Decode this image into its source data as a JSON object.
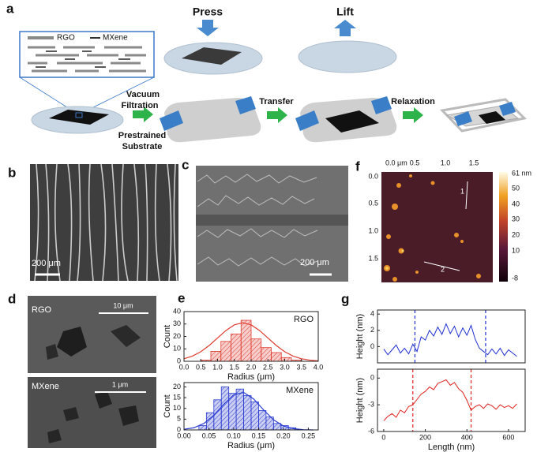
{
  "figure": {
    "a": {
      "label": "a",
      "legend_rgo": "RGO",
      "legend_mxene": "MXene",
      "press": "Press",
      "lift": "Lift",
      "vacuum_filtration": [
        "Vacuum",
        "Filtration"
      ],
      "prestrained_substrate": [
        "Prestrained",
        "Substrate"
      ],
      "transfer": "Transfer",
      "relaxation": "Relaxation"
    },
    "b": {
      "label": "b",
      "scale_bar": "200 μm"
    },
    "c": {
      "label": "c",
      "scale_bar": "200 μm"
    },
    "d": {
      "label": "d",
      "images": [
        {
          "name": "RGO",
          "scale_bar": "10 μm"
        },
        {
          "name": "MXene",
          "scale_bar": "1 μm"
        }
      ]
    },
    "e": {
      "label": "e"
    },
    "f": {
      "label": "f",
      "x_ticks": [
        "0.0 μm",
        "0.5",
        "1.0",
        "1.5"
      ],
      "y_ticks": [
        "0.0",
        "0.5",
        "1.0",
        "1.5"
      ],
      "colorbar_ticks": [
        "61 nm",
        "50",
        "40",
        "30",
        "20",
        "10",
        "-8"
      ],
      "line_labels": [
        "1",
        "2"
      ]
    },
    "g": {
      "label": "g"
    }
  },
  "chart_data": [
    {
      "type": "histogram",
      "annotation": "RGO",
      "y_label": "Count",
      "x_label": "Radius (μm)",
      "color": "#e03c31",
      "bins": [
        0.5,
        0.8,
        1.1,
        1.4,
        1.7,
        2.0,
        2.3,
        2.6,
        2.9,
        3.2,
        3.5
      ],
      "values": [
        1,
        8,
        16,
        22,
        33,
        18,
        11,
        7,
        3,
        1
      ],
      "curve": {
        "x": [
          0,
          0.25,
          0.5,
          0.75,
          1.0,
          1.25,
          1.5,
          1.75,
          2.0,
          2.25,
          2.5,
          2.75,
          3.0,
          3.25,
          3.5,
          3.75,
          4.0
        ],
        "values": [
          2.0,
          4.2,
          7.7,
          12.7,
          18.8,
          24.8,
          29.3,
          31,
          29.3,
          24.8,
          18.8,
          12.7,
          7.7,
          4.2,
          2.0,
          0.9,
          0.3
        ]
      },
      "xlim": [
        0,
        4
      ],
      "ylim": [
        0,
        40
      ],
      "xticks": [
        {
          "value": 0,
          "label": "0.0"
        },
        0.5,
        {
          "value": 1,
          "label": "1.0"
        },
        1.5,
        {
          "value": 2,
          "label": "2.0"
        },
        2.5,
        {
          "value": 3,
          "label": "3.0"
        },
        3.5,
        {
          "value": 4,
          "label": "4.0"
        }
      ],
      "yticks": [
        0,
        10,
        20,
        30,
        40
      ]
    },
    {
      "type": "histogram",
      "annotation": "MXene",
      "y_label": "Count",
      "x_label": "Radius (μm)",
      "color": "#2a3bd1",
      "bins": [
        0.03,
        0.045,
        0.06,
        0.075,
        0.09,
        0.105,
        0.12,
        0.135,
        0.15,
        0.165,
        0.18,
        0.195,
        0.21,
        0.225
      ],
      "values": [
        2,
        8,
        14,
        20,
        17,
        19,
        16,
        13,
        9,
        6,
        3,
        2,
        1
      ],
      "curve": {
        "x": [
          0,
          0.02,
          0.04,
          0.06,
          0.08,
          0.1,
          0.12,
          0.14,
          0.16,
          0.18,
          0.2,
          0.22,
          0.24,
          0.26
        ],
        "values": [
          0.3,
          1.0,
          3.0,
          6.8,
          11.9,
          16.3,
          17.4,
          14.4,
          9.3,
          4.7,
          1.8,
          0.6,
          0.1,
          0
        ]
      },
      "xlim": [
        0,
        0.27
      ],
      "ylim": [
        0,
        22
      ],
      "xticks": [
        {
          "value": 0,
          "label": "0.00"
        },
        0.05,
        {
          "value": 0.1,
          "label": "0.10"
        },
        0.15,
        {
          "value": 0.2,
          "label": "0.20"
        },
        0.25
      ],
      "yticks": [
        0,
        5,
        10,
        15,
        20
      ]
    },
    {
      "type": "line",
      "y_label": "Height (nm)",
      "x": [
        0,
        20,
        40,
        60,
        80,
        100,
        120,
        140,
        160,
        180,
        200,
        220,
        240,
        260,
        280,
        300,
        320,
        340,
        360,
        380,
        400,
        420,
        440,
        460,
        480,
        500,
        520,
        540,
        560,
        580,
        600,
        620,
        640
      ],
      "series": [
        {
          "color": "#1f2fd0",
          "values": [
            -0.3,
            -1.0,
            -0.4,
            0.2,
            -0.8,
            -0.2,
            -0.9,
            0.3,
            -0.6,
            1.2,
            0.8,
            2.0,
            1.3,
            2.4,
            1.5,
            2.8,
            1.6,
            2.5,
            1.2,
            2.3,
            1.4,
            2.6,
            0.9,
            -0.2,
            -0.6,
            -1.0,
            -0.3,
            -0.9,
            -0.2,
            -1.1,
            -0.4,
            -0.8,
            -1.2
          ]
        }
      ],
      "vlines": [
        150,
        490
      ],
      "xlim": [
        -30,
        680
      ],
      "ylim": [
        -2,
        4.5
      ],
      "yticks": [
        0,
        2,
        4
      ]
    },
    {
      "type": "line",
      "y_label": "Height (nm)",
      "x_label": "Length (nm)",
      "x": [
        0,
        20,
        40,
        60,
        80,
        100,
        120,
        140,
        160,
        180,
        200,
        220,
        240,
        260,
        280,
        300,
        320,
        340,
        360,
        380,
        400,
        420,
        440,
        460,
        480,
        500,
        520,
        540,
        560,
        580,
        600,
        620,
        640
      ],
      "series": [
        {
          "color": "#e02020",
          "values": [
            -4.8,
            -4.3,
            -4.0,
            -4.4,
            -3.6,
            -3.9,
            -3.2,
            -3.0,
            -2.4,
            -1.8,
            -1.5,
            -1.0,
            -1.3,
            -0.6,
            -0.4,
            -0.2,
            -0.8,
            -0.5,
            -1.2,
            -1.6,
            -2.5,
            -3.6,
            -3.2,
            -3.0,
            -3.4,
            -2.9,
            -3.1,
            -3.5,
            -3.0,
            -3.3,
            -3.1,
            -3.4,
            -2.9
          ]
        }
      ],
      "vlines": [
        140,
        420
      ],
      "xlim": [
        -30,
        680
      ],
      "ylim": [
        -6,
        1
      ],
      "xticks": [
        0,
        200,
        400,
        600
      ],
      "yticks": [
        -6,
        -3,
        0
      ]
    }
  ]
}
